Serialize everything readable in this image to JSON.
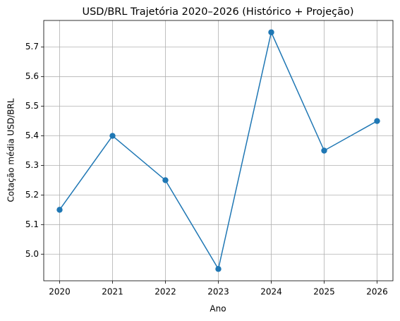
{
  "chart_data": {
    "type": "line",
    "title": "USD/BRL Trajetória 2020–2026 (Histórico + Projeção)",
    "x_label": "Ano",
    "y_label": "Cotação média USD/BRL",
    "x": [
      2020,
      2021,
      2022,
      2023,
      2024,
      2025,
      2026
    ],
    "series": [
      {
        "name": "USD/BRL",
        "color": "#1f77b4",
        "values": [
          5.15,
          5.4,
          5.25,
          4.95,
          5.75,
          5.35,
          5.45
        ]
      }
    ],
    "xlim": [
      2019.7,
      2026.3
    ],
    "xticks": [
      2020,
      2021,
      2022,
      2023,
      2024,
      2025,
      2026
    ],
    "ylim": [
      4.91,
      5.79
    ],
    "yticks": [
      {
        "value": 5,
        "label": "5.0"
      },
      5.1,
      5.2,
      5.3,
      5.4,
      5.5,
      5.6,
      5.7
    ],
    "grid": true,
    "markers": true
  }
}
